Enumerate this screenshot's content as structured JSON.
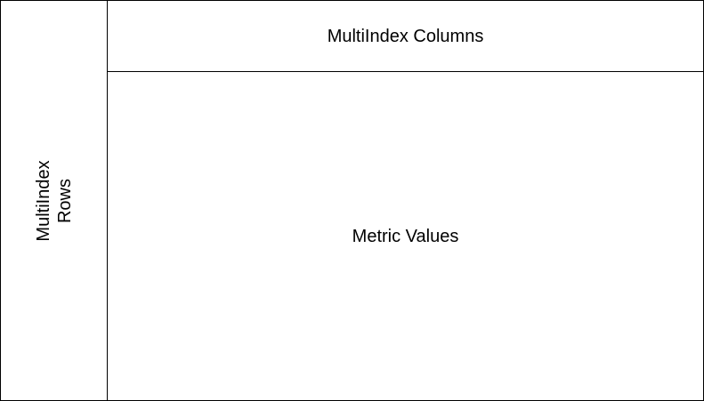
{
  "diagram": {
    "rows_label_line1": "MultiIndex",
    "rows_label_line2": "Rows",
    "columns_label": "MultiIndex Columns",
    "values_label": "Metric Values",
    "border_color": "#000000",
    "background_color": "#ffffff"
  }
}
